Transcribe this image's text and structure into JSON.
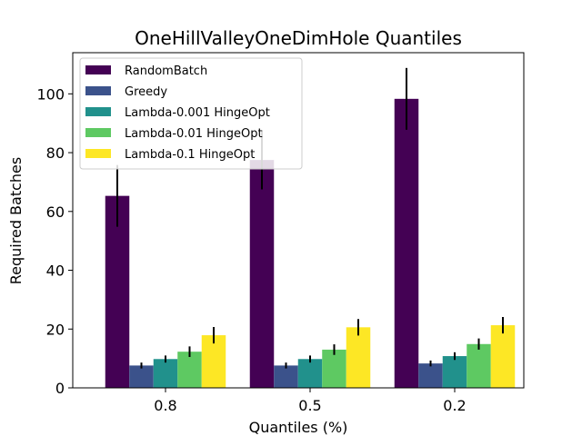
{
  "chart_data": {
    "type": "bar",
    "title": "OneHillValleyOneDimHole Quantiles",
    "xlabel": "Quantiles (%)",
    "ylabel": "Required Batches",
    "categories": [
      "0.8",
      "0.5",
      "0.2"
    ],
    "ylim": [
      0,
      114
    ],
    "yticks": [
      0,
      20,
      40,
      60,
      80,
      100
    ],
    "legend_position": "top-left",
    "grid": false,
    "series": [
      {
        "name": "RandomBatch",
        "color": "#440154",
        "values": [
          65.3,
          77.5,
          98.3
        ],
        "errors": [
          10.5,
          10.0,
          10.5
        ]
      },
      {
        "name": "Greedy",
        "color": "#3b528b",
        "values": [
          7.6,
          7.6,
          8.3
        ],
        "errors": [
          1.0,
          1.0,
          1.0
        ]
      },
      {
        "name": "Lambda-0.001 HingeOpt",
        "color": "#21918c",
        "values": [
          9.8,
          9.8,
          10.8
        ],
        "errors": [
          1.2,
          1.2,
          1.3
        ]
      },
      {
        "name": "Lambda-0.01 HingeOpt",
        "color": "#5ec962",
        "values": [
          12.3,
          13.0,
          14.9
        ],
        "errors": [
          1.8,
          1.8,
          1.9
        ]
      },
      {
        "name": "Lambda-0.1 HingeOpt",
        "color": "#fde725",
        "values": [
          17.9,
          20.6,
          21.3
        ],
        "errors": [
          2.8,
          2.8,
          2.8
        ]
      }
    ]
  }
}
